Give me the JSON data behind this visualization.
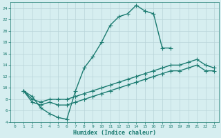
{
  "xlabel": "Humidex (Indice chaleur)",
  "background_color": "#d6eef0",
  "grid_color": "#b8d4d8",
  "line_color": "#1a7a70",
  "xlim": [
    -0.5,
    23.5
  ],
  "ylim": [
    4,
    25
  ],
  "xticks": [
    0,
    1,
    2,
    3,
    4,
    5,
    6,
    7,
    8,
    9,
    10,
    11,
    12,
    13,
    14,
    15,
    16,
    17,
    18,
    19,
    20,
    21,
    22,
    23
  ],
  "yticks": [
    4,
    6,
    8,
    10,
    12,
    14,
    16,
    18,
    20,
    22,
    24
  ],
  "line1_x": [
    1,
    2,
    3,
    4,
    5,
    6,
    7,
    8,
    9,
    10,
    11,
    12,
    13,
    14,
    15,
    16,
    17,
    18
  ],
  "line1_y": [
    9.5,
    8.5,
    6.5,
    5.5,
    4.8,
    4.5,
    9.5,
    13.5,
    15.5,
    18.0,
    21.0,
    22.5,
    23.0,
    24.5,
    23.5,
    23.0,
    17.0,
    17.0
  ],
  "line2_x": [
    1,
    2,
    3,
    4,
    5,
    6,
    7,
    8,
    9,
    10,
    11,
    12,
    13,
    14,
    15,
    16,
    17,
    18,
    19,
    20,
    21,
    22,
    23
  ],
  "line2_y": [
    9.5,
    8.0,
    7.5,
    8.0,
    8.0,
    8.0,
    8.5,
    9.0,
    9.5,
    10.0,
    10.5,
    11.0,
    11.5,
    12.0,
    12.5,
    13.0,
    13.5,
    14.0,
    14.0,
    14.5,
    15.0,
    14.0,
    13.5
  ],
  "line3_x": [
    1,
    2,
    3,
    4,
    5,
    6,
    7,
    8,
    9,
    10,
    11,
    12,
    13,
    14,
    15,
    16,
    17,
    18,
    19,
    20,
    21,
    22,
    23
  ],
  "line3_y": [
    9.5,
    7.5,
    7.0,
    7.5,
    7.0,
    7.0,
    7.5,
    8.0,
    8.5,
    9.0,
    9.5,
    10.0,
    10.5,
    11.0,
    11.5,
    12.0,
    12.5,
    13.0,
    13.0,
    13.5,
    14.0,
    13.0,
    13.0
  ],
  "marker": "+",
  "markersize": 4,
  "linewidth": 1.0
}
